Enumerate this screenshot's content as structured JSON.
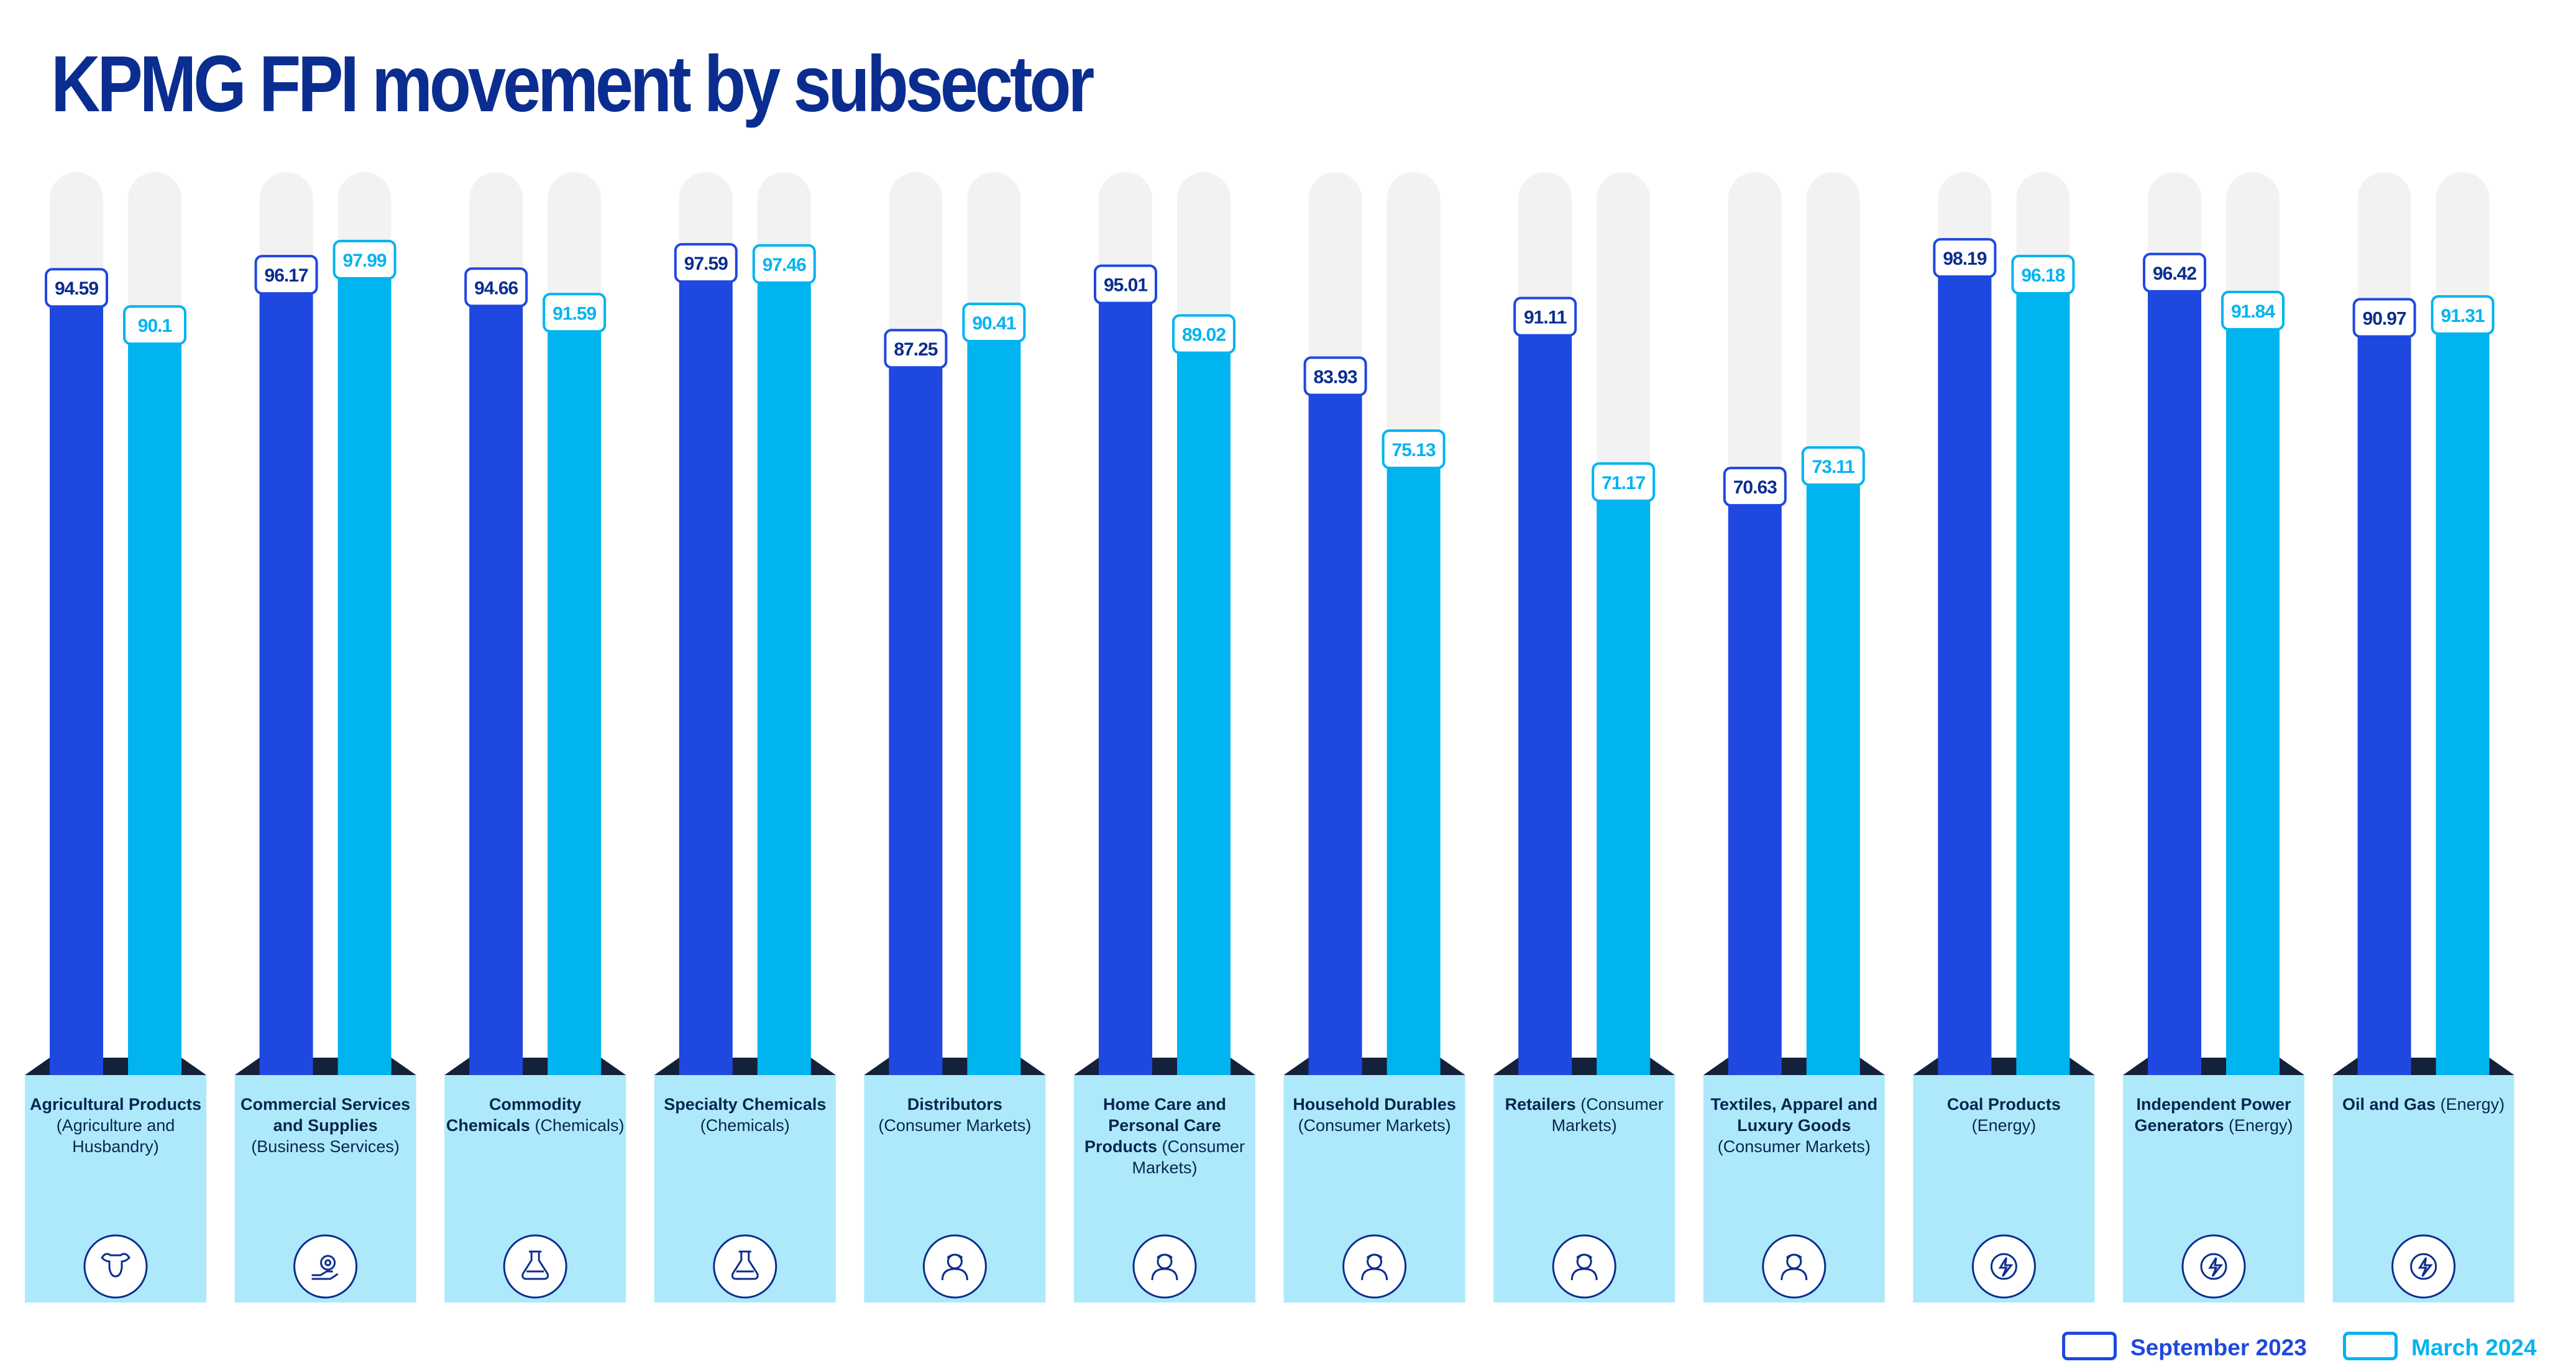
{
  "title": "KPMG FPI movement by subsector",
  "colors": {
    "sep": "#1f48e0",
    "mar": "#00b4ef",
    "track": "#f2f2f2",
    "panel": "#ade9fb",
    "title": "#0a2d8f",
    "shadow": "#14213a"
  },
  "chart_data": {
    "type": "bar",
    "title": "KPMG FPI movement by subsector",
    "ylim": [
      0,
      100
    ],
    "categories": [
      "Agricultural Products (Agriculture and Husbandry)",
      "Commercial Services and Supplies (Business Services)",
      "Commodity Chemicals (Chemicals)",
      "Specialty Chemicals (Chemicals)",
      "Distributors (Consumer Markets)",
      "Home Care and Personal Care Products (Consumer Markets)",
      "Household Durables (Consumer Markets)",
      "Retailers (Consumer Markets)",
      "Textiles, Apparel and Luxury Goods (Consumer Markets)",
      "Coal Products (Energy)",
      "Independent Power Generators (Energy)",
      "Oil and Gas (Energy)"
    ],
    "series": [
      {
        "name": "September 2023",
        "values": [
          94.59,
          96.17,
          94.66,
          97.59,
          87.25,
          95.01,
          83.93,
          91.11,
          70.63,
          98.19,
          96.42,
          90.97
        ]
      },
      {
        "name": "March 2024",
        "values": [
          90.1,
          97.99,
          91.59,
          97.46,
          90.41,
          89.02,
          75.13,
          71.17,
          73.11,
          96.18,
          91.84,
          91.31
        ]
      }
    ],
    "legend": [
      "September 2023",
      "March 2024"
    ]
  },
  "subsectors": [
    {
      "name": "Agricultural Products",
      "group": "(Agriculture and Husbandry)",
      "icon": "bull-icon"
    },
    {
      "name": "Commercial Services and Supplies",
      "group": "(Business Services)",
      "icon": "gear-hand-icon"
    },
    {
      "name": "Commodity Chemicals",
      "group": "(Chemicals)",
      "icon": "flask-icon"
    },
    {
      "name": "Specialty Chemicals",
      "group": "(Chemicals)",
      "icon": "flask-icon"
    },
    {
      "name": "Distributors",
      "group": "(Consumer Markets)",
      "icon": "person-icon"
    },
    {
      "name": "Home Care and Personal Care Products",
      "group": "(Consumer Markets)",
      "icon": "person-icon"
    },
    {
      "name": "Household Durables",
      "group": "(Consumer Markets)",
      "icon": "person-icon"
    },
    {
      "name": "Retailers",
      "group": "(Consumer Markets)",
      "icon": "person-icon"
    },
    {
      "name": "Textiles, Apparel and Luxury Goods",
      "group": "(Consumer Markets)",
      "icon": "person-icon"
    },
    {
      "name": "Coal Products",
      "group": "(Energy)",
      "icon": "lightning-icon"
    },
    {
      "name": "Independent Power Generators",
      "group": "(Energy)",
      "icon": "lightning-icon"
    },
    {
      "name": "Oil and Gas",
      "group": "(Energy)",
      "icon": "lightning-icon"
    }
  ],
  "legend": {
    "sep": "September 2023",
    "mar": "March 2024"
  }
}
